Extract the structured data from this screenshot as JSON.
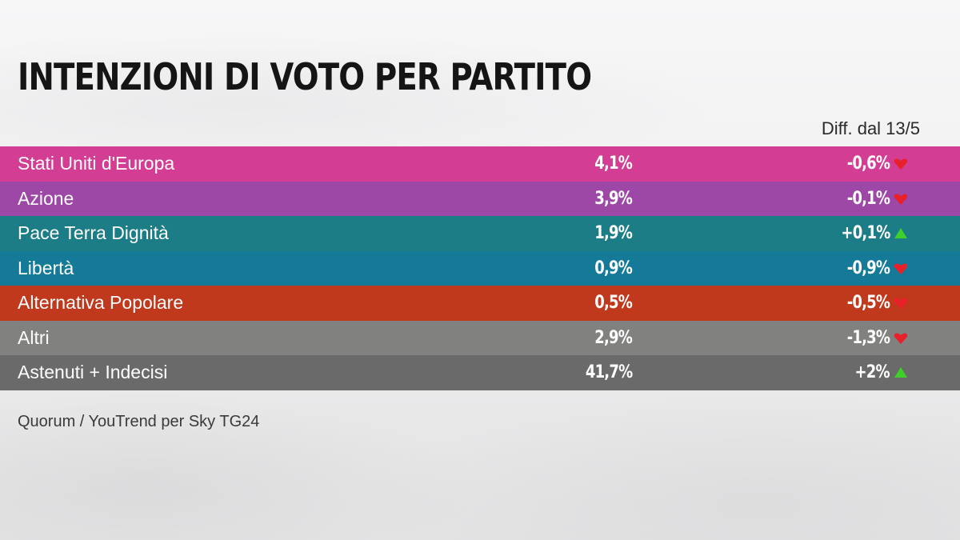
{
  "title": "INTENZIONI DI VOTO PER PARTITO",
  "diff_header": "Diff. dal 13/5",
  "source": "Quorum / YouTrend per Sky TG24",
  "colors": {
    "up": "#3fcf2a",
    "down": "#e8202a"
  },
  "chart_data": {
    "type": "table",
    "title": "INTENZIONI DI VOTO PER PARTITO",
    "columns": [
      "",
      "",
      "Diff. dal 13/5"
    ],
    "rows": [
      {
        "party": "Stati Uniti d'Europa",
        "value": "4,1%",
        "diff": "-0,6%",
        "direction": "down",
        "color": "#d33d94"
      },
      {
        "party": "Azione",
        "value": "3,9%",
        "diff": "-0,1%",
        "direction": "down",
        "color": "#9d47a6"
      },
      {
        "party": "Pace Terra Dignità",
        "value": "1,9%",
        "diff": "+0,1%",
        "direction": "up",
        "color": "#1d7d86"
      },
      {
        "party": "Libertà",
        "value": "0,9%",
        "diff": "-0,9%",
        "direction": "down",
        "color": "#147a98"
      },
      {
        "party": "Alternativa Popolare",
        "value": "0,5%",
        "diff": "-0,5%",
        "direction": "down",
        "color": "#c1391c"
      },
      {
        "party": "Altri",
        "value": "2,9%",
        "diff": "-1,3%",
        "direction": "down",
        "color": "#81817f"
      },
      {
        "party": "Astenuti + Indecisi",
        "value": "41,7%",
        "diff": "+2%",
        "direction": "up",
        "color": "#6a6a6a"
      }
    ]
  }
}
